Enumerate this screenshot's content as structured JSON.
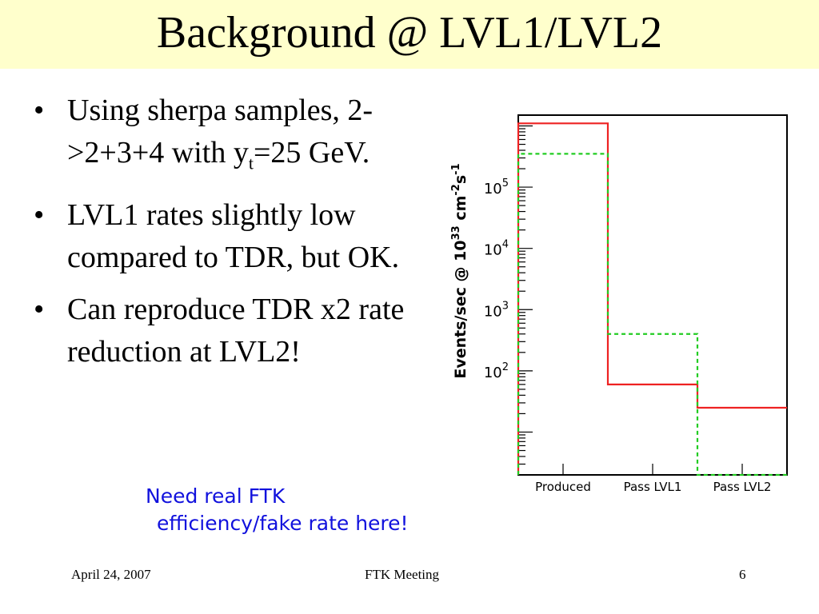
{
  "slide": {
    "title": "Background @ LVL1/LVL2",
    "bullets": [
      {
        "text": "Using sherpa samples, 2->2+3+4 with y",
        "sub": "t",
        "tail": "=25 GeV."
      },
      {
        "text": "LVL1 rates slightly low compared to TDR, but OK."
      },
      {
        "text": "Can reproduce TDR x2 rate reduction at LVL2!"
      }
    ],
    "note_line1": "Need real FTK",
    "note_line2": "efficiency/fake rate here!",
    "footer_date": "April 24, 2007",
    "footer_meeting": "FTK Meeting",
    "footer_page": "6"
  },
  "chart_data": {
    "type": "histogram",
    "categories": [
      "Produced",
      "Pass LVL1",
      "Pass LVL2"
    ],
    "ylabel": "Events/sec @ 10^33 cm^-2 s^-1",
    "yscale": "log",
    "ylim": [
      2,
      1500000
    ],
    "y_ticks": [
      "10^2",
      "10^3",
      "10^4",
      "10^5"
    ],
    "series": [
      {
        "color": "#ee2222",
        "style": "solid",
        "values": [
          1100000,
          60,
          25
        ]
      },
      {
        "color": "#22cc22",
        "style": "dashed",
        "values": [
          350000,
          400,
          2
        ]
      }
    ]
  }
}
